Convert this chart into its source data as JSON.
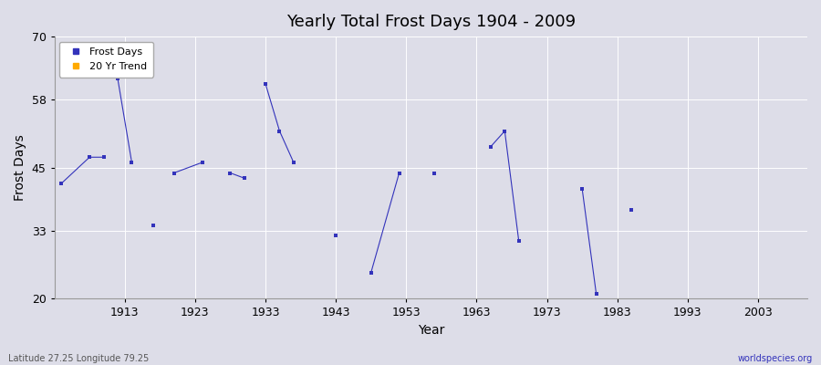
{
  "title": "Yearly Total Frost Days 1904 - 2009",
  "xlabel": "Year",
  "ylabel": "Frost Days",
  "xlim": [
    1903,
    2010
  ],
  "ylim": [
    20,
    70
  ],
  "yticks": [
    20,
    33,
    45,
    58,
    70
  ],
  "xticks": [
    1913,
    1923,
    1933,
    1943,
    1953,
    1963,
    1973,
    1983,
    1993,
    2003
  ],
  "background_color": "#dddde8",
  "plot_bg_color": "#dddde8",
  "grid_color": "#ffffff",
  "line_color": "#3333bb",
  "marker_color": "#3333bb",
  "legend_frost_color": "#3333bb",
  "legend_trend_color": "#ffaa00",
  "footer_left": "Latitude 27.25 Longitude 79.25",
  "footer_right": "worldspecies.org",
  "year_groups": [
    [
      1904,
      1908,
      1910
    ],
    [
      1912,
      1914
    ],
    [
      1917
    ],
    [
      1920,
      1924
    ],
    [
      1928,
      1930
    ],
    [
      1933,
      1935,
      1937
    ],
    [
      1943
    ],
    [
      1948,
      1952
    ],
    [
      1957
    ],
    [
      1965,
      1967,
      1969
    ],
    [
      1978,
      1980
    ],
    [
      1985
    ]
  ],
  "value_groups": [
    [
      42,
      47,
      47
    ],
    [
      62,
      46
    ],
    [
      34
    ],
    [
      44,
      46
    ],
    [
      44,
      43
    ],
    [
      61,
      52,
      46
    ],
    [
      32
    ],
    [
      25,
      44
    ],
    [
      44
    ],
    [
      49,
      52,
      31
    ],
    [
      41,
      21
    ],
    [
      37
    ]
  ]
}
